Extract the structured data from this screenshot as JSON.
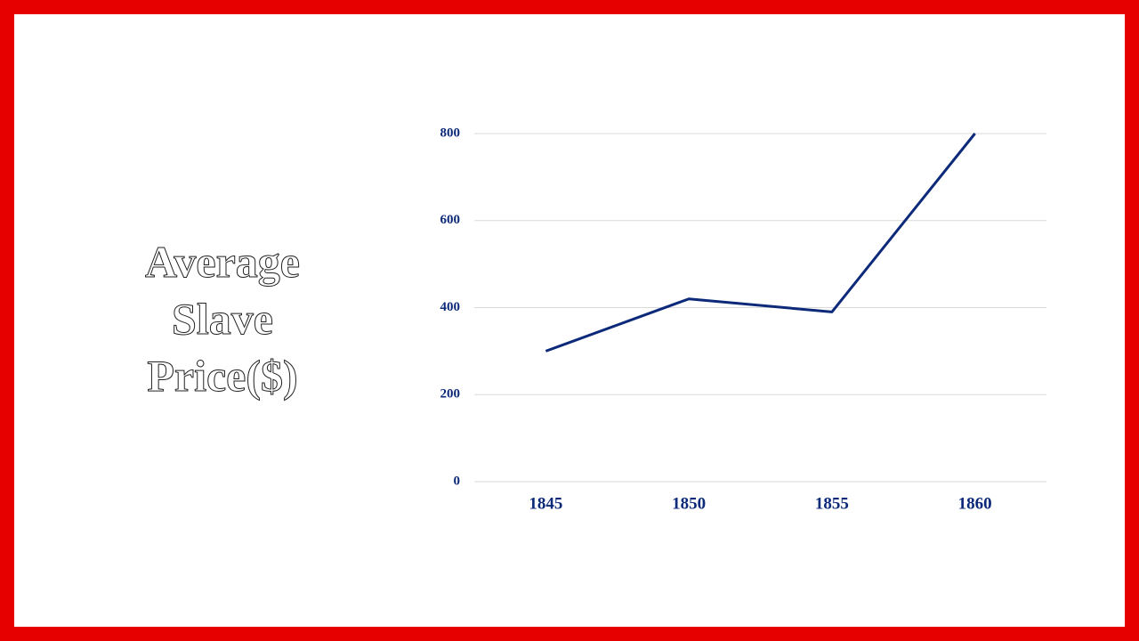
{
  "chart_data": {
    "type": "line",
    "title": "Average Slave Price($)",
    "categories": [
      "1845",
      "1850",
      "1855",
      "1860"
    ],
    "values": [
      300,
      420,
      390,
      800
    ],
    "color": "#0d2a7a",
    "ylim": [
      0,
      800
    ],
    "yticks": [
      0,
      200,
      400,
      600,
      800
    ],
    "grid": true
  }
}
